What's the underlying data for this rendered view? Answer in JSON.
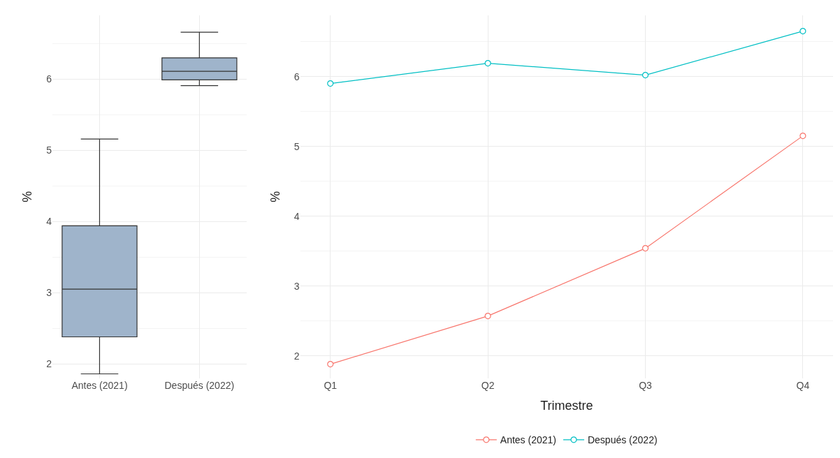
{
  "chart_data": [
    {
      "type": "box",
      "ylabel": "%",
      "categories": [
        "Antes (2021)",
        "Después (2022)"
      ],
      "color": "#9fb4cb",
      "boxes": [
        {
          "low": 1.86,
          "q1": 2.38,
          "median": 3.05,
          "q3": 3.94,
          "high": 5.16
        },
        {
          "low": 5.91,
          "q1": 5.99,
          "median": 6.11,
          "q3": 6.3,
          "high": 6.66
        }
      ],
      "ylim": [
        1.8,
        6.9
      ],
      "yticks": [
        2,
        3,
        4,
        5,
        6
      ],
      "grid": true
    },
    {
      "type": "line",
      "xlabel": "Trimestre",
      "ylabel": "%",
      "categories": [
        "Q1",
        "Q2",
        "Q3",
        "Q4"
      ],
      "series": [
        {
          "name": "Antes (2021)",
          "color": "#f8766d",
          "values": [
            1.88,
            2.57,
            3.54,
            5.15
          ]
        },
        {
          "name": "Después (2022)",
          "color": "#00bfc4",
          "values": [
            5.9,
            6.19,
            6.02,
            6.65
          ]
        }
      ],
      "ylim": [
        1.68,
        6.88
      ],
      "yticks": [
        2,
        3,
        4,
        5,
        6
      ],
      "grid": true,
      "marker": "circle",
      "legend": "bottom"
    }
  ]
}
